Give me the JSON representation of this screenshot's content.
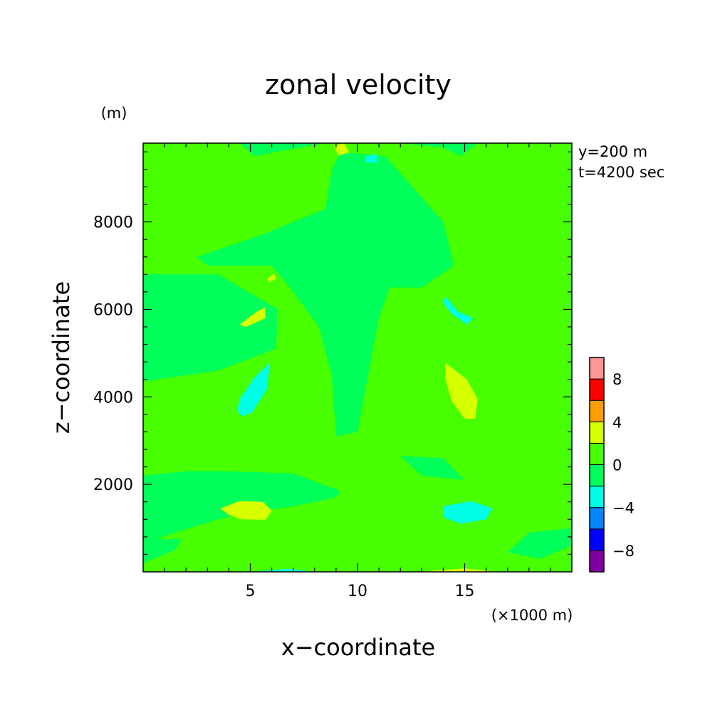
{
  "chart_data": {
    "type": "heatmap",
    "title": "zonal velocity",
    "xlabel": "x−coordinate",
    "ylabel": "z−coordinate",
    "x_unit": "(×1000 m)",
    "y_unit": "(m)",
    "info_lines": [
      "y=200 m",
      "t=4200 sec"
    ],
    "xlim": [
      0,
      20
    ],
    "ylim": [
      0,
      9800
    ],
    "x_ticks": [
      5,
      10,
      15
    ],
    "x_tick_labels": [
      "5",
      "10",
      "15"
    ],
    "y_ticks": [
      2000,
      4000,
      6000,
      8000
    ],
    "y_tick_labels": [
      "2000",
      "4000",
      "6000",
      "8000"
    ],
    "colorbar": {
      "levels": [
        -10,
        -8,
        -6,
        -4,
        -2,
        0,
        2,
        4,
        6,
        8,
        10
      ],
      "labels": [
        {
          "value": 8,
          "text": "8"
        },
        {
          "value": 4,
          "text": "4"
        },
        {
          "value": 0,
          "text": "0"
        },
        {
          "value": -4,
          "text": "−4"
        },
        {
          "value": -8,
          "text": "−8"
        }
      ],
      "colors": [
        "#7f00a0",
        "#0000ff",
        "#0087ff",
        "#00ffe6",
        "#00ff58",
        "#47ff00",
        "#d6ff00",
        "#ff9c00",
        "#ff0000",
        "#ff9696"
      ]
    },
    "background_level": {
      "range": [
        -2,
        0
      ],
      "color": "#00ff58"
    },
    "regions": [
      {
        "range": [
          0,
          2
        ],
        "color": "#47ff00",
        "points": [
          [
            0,
            9800
          ],
          [
            4.5,
            9800
          ],
          [
            5.2,
            9500
          ],
          [
            6.2,
            9600
          ],
          [
            8.5,
            9800
          ],
          [
            12,
            9800
          ],
          [
            14,
            9700
          ],
          [
            14.8,
            9500
          ],
          [
            15.6,
            9800
          ],
          [
            20,
            9800
          ],
          [
            20,
            1500
          ],
          [
            16,
            1500
          ],
          [
            13,
            1900
          ],
          [
            11,
            2000
          ],
          [
            10,
            2100
          ],
          [
            10,
            0
          ],
          [
            0,
            0
          ],
          [
            0,
            650
          ],
          [
            1.5,
            900
          ],
          [
            3.5,
            1200
          ],
          [
            5,
            1350
          ],
          [
            7,
            1500
          ],
          [
            9,
            1700
          ],
          [
            9.2,
            1850
          ],
          [
            7,
            2250
          ],
          [
            4,
            2300
          ],
          [
            2,
            2300
          ],
          [
            0,
            2200
          ],
          [
            0,
            4350
          ],
          [
            3.5,
            4600
          ],
          [
            6.2,
            5100
          ],
          [
            6.3,
            6000
          ],
          [
            3.5,
            6800
          ],
          [
            0,
            6800
          ]
        ]
      },
      {
        "range": [
          0,
          2
        ],
        "color": "#47ff00",
        "points": [
          [
            10,
            0
          ],
          [
            20,
            0
          ],
          [
            20,
            2600
          ],
          [
            14.5,
            2800
          ],
          [
            11.2,
            3000
          ],
          [
            10,
            3200
          ]
        ]
      },
      {
        "range": [
          0,
          2
        ],
        "color": "#47ff00",
        "points": [
          [
            11,
            4600
          ],
          [
            14,
            4850
          ],
          [
            15.5,
            5300
          ],
          [
            14,
            6300
          ],
          [
            12.5,
            6100
          ],
          [
            11,
            5000
          ]
        ]
      },
      {
        "range": [
          -2,
          0
        ],
        "color": "#00ff58",
        "points": [
          [
            9.2,
            9600
          ],
          [
            11.3,
            9500
          ],
          [
            14,
            8000
          ],
          [
            14.5,
            7000
          ],
          [
            13,
            6500
          ],
          [
            11.5,
            6500
          ],
          [
            11,
            5800
          ],
          [
            10,
            3200
          ],
          [
            9,
            3100
          ],
          [
            8.8,
            4500
          ],
          [
            8.2,
            5600
          ],
          [
            7,
            6400
          ],
          [
            6,
            7000
          ],
          [
            3,
            7000
          ],
          [
            2.5,
            7200
          ],
          [
            5.5,
            7700
          ],
          [
            8.5,
            8300
          ],
          [
            8.8,
            9200
          ]
        ]
      },
      {
        "range": [
          -2,
          0
        ],
        "color": "#00ff58",
        "points": [
          [
            0,
            200
          ],
          [
            1.5,
            500
          ],
          [
            1.8,
            750
          ],
          [
            0,
            750
          ]
        ]
      },
      {
        "range": [
          -2,
          0
        ],
        "color": "#00ff58",
        "points": [
          [
            20,
            600
          ],
          [
            18.5,
            300
          ],
          [
            17,
            450
          ],
          [
            18,
            900
          ],
          [
            20,
            1000
          ]
        ]
      },
      {
        "range": [
          -2,
          0
        ],
        "color": "#00ff58",
        "points": [
          [
            12,
            2650
          ],
          [
            13,
            2200
          ],
          [
            15,
            2100
          ],
          [
            14,
            2600
          ]
        ]
      },
      {
        "range": [
          2,
          4
        ],
        "color": "#d6ff00",
        "points": [
          [
            3.6,
            1450
          ],
          [
            4.5,
            1620
          ],
          [
            5.6,
            1600
          ],
          [
            6,
            1400
          ],
          [
            5.7,
            1190
          ],
          [
            4.6,
            1200
          ],
          [
            4,
            1300
          ]
        ]
      },
      {
        "range": [
          2,
          4
        ],
        "color": "#d6ff00",
        "points": [
          [
            14.1,
            4780
          ],
          [
            15.1,
            4400
          ],
          [
            15.6,
            3950
          ],
          [
            15.5,
            3500
          ],
          [
            15,
            3500
          ],
          [
            14.4,
            3900
          ],
          [
            14.1,
            4400
          ]
        ]
      },
      {
        "range": [
          2,
          4
        ],
        "color": "#d6ff00",
        "points": [
          [
            4.5,
            5650
          ],
          [
            5.3,
            5950
          ],
          [
            5.7,
            6050
          ],
          [
            5.7,
            5800
          ],
          [
            4.8,
            5600
          ]
        ]
      },
      {
        "range": [
          2,
          4
        ],
        "color": "#d6ff00",
        "points": [
          [
            8.9,
            9750
          ],
          [
            9.4,
            9800
          ],
          [
            9.6,
            9580
          ],
          [
            9.1,
            9520
          ]
        ]
      },
      {
        "range": [
          2,
          4
        ],
        "color": "#d6ff00",
        "points": [
          [
            5.8,
            6700
          ],
          [
            6.1,
            6820
          ],
          [
            6.2,
            6700
          ],
          [
            5.9,
            6620
          ]
        ]
      },
      {
        "range": [
          2,
          4
        ],
        "color": "#d6ff00",
        "points": [
          [
            12.8,
            0
          ],
          [
            15,
            80
          ],
          [
            16.5,
            0
          ]
        ]
      },
      {
        "range": [
          -4,
          -2
        ],
        "color": "#00ffe6",
        "points": [
          [
            14,
            1500
          ],
          [
            15.3,
            1620
          ],
          [
            16.3,
            1450
          ],
          [
            16,
            1200
          ],
          [
            14.8,
            1100
          ],
          [
            14,
            1250
          ]
        ]
      },
      {
        "range": [
          -4,
          -2
        ],
        "color": "#00ffe6",
        "points": [
          [
            4.5,
            3950
          ],
          [
            5.2,
            4450
          ],
          [
            5.9,
            4780
          ],
          [
            5.8,
            4200
          ],
          [
            5.1,
            3650
          ],
          [
            4.6,
            3550
          ],
          [
            4.4,
            3700
          ]
        ]
      },
      {
        "range": [
          -4,
          -2
        ],
        "color": "#00ffe6",
        "points": [
          [
            14.1,
            6300
          ],
          [
            14.7,
            5950
          ],
          [
            15.4,
            5800
          ],
          [
            15.1,
            5650
          ],
          [
            14.4,
            5900
          ],
          [
            14,
            6150
          ]
        ]
      },
      {
        "range": [
          -4,
          -2
        ],
        "color": "#00ffe6",
        "points": [
          [
            10.4,
            9500
          ],
          [
            10.9,
            9550
          ],
          [
            10.9,
            9350
          ],
          [
            10.4,
            9360
          ]
        ]
      },
      {
        "range": [
          -4,
          -2
        ],
        "color": "#00ffe6",
        "points": [
          [
            5,
            0
          ],
          [
            6.8,
            70
          ],
          [
            8,
            0
          ]
        ]
      }
    ]
  }
}
